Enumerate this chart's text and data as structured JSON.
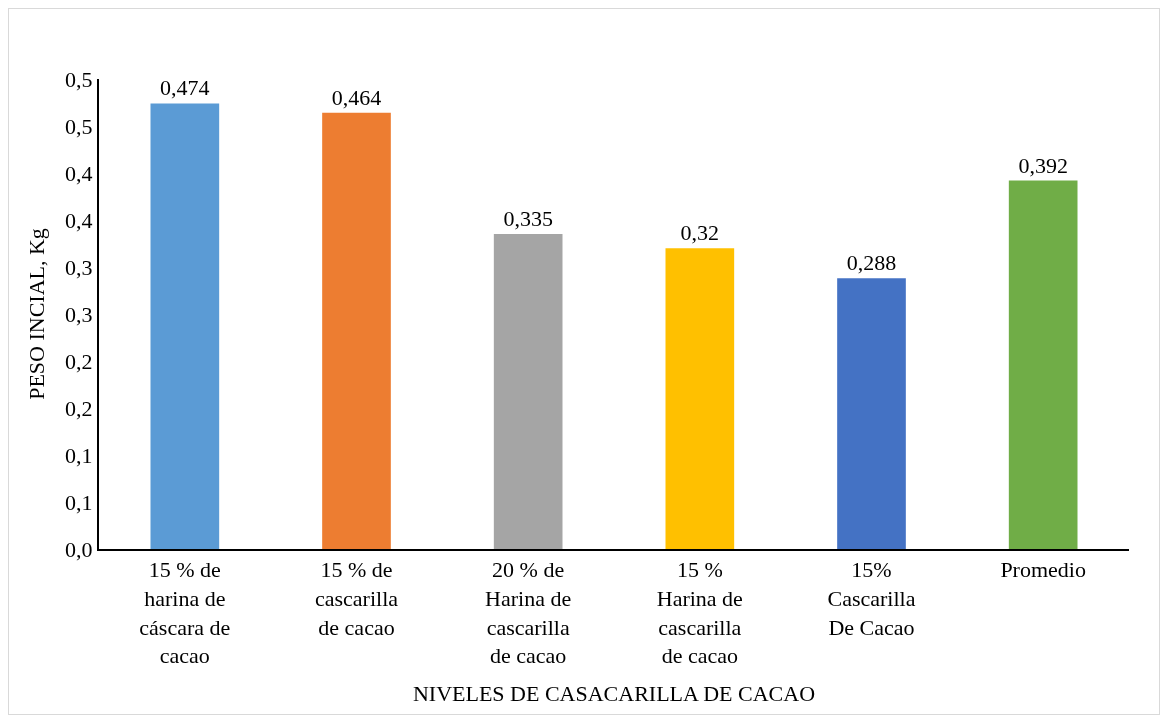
{
  "chart_data": {
    "type": "bar",
    "xlabel": "NIVELES DE CASACARILLA DE CACAO",
    "ylabel": "PESO INCIAL, Kg",
    "categories": [
      "15 % de harina de cáscara de cacao",
      "15 % de cascarilla de cacao",
      "20 % de Harina de cascarilla de cacao",
      "15 % Harina de cascarilla de cacao",
      "15% Cascarilla De Cacao",
      "Promedio"
    ],
    "values": [
      0.474,
      0.464,
      0.335,
      0.32,
      0.288,
      0.392
    ],
    "value_labels": [
      "0,474",
      "0,464",
      "0,335",
      "0,32",
      "0,288",
      "0,392"
    ],
    "colors": [
      "#5b9bd5",
      "#ed7d31",
      "#a5a5a5",
      "#ffc000",
      "#4472c4",
      "#70ad47"
    ],
    "ylim": [
      0,
      0.5
    ],
    "yticks": [
      {
        "value": 0,
        "label": "0,0"
      },
      {
        "value": 0.05,
        "label": "0,1"
      },
      {
        "value": 0.1,
        "label": "0,1"
      },
      {
        "value": 0.15,
        "label": "0,2"
      },
      {
        "value": 0.2,
        "label": "0,2"
      },
      {
        "value": 0.25,
        "label": "0,3"
      },
      {
        "value": 0.3,
        "label": "0,3"
      },
      {
        "value": 0.35,
        "label": "0,4"
      },
      {
        "value": 0.4,
        "label": "0,4"
      },
      {
        "value": 0.45,
        "label": "0,5"
      },
      {
        "value": 0.5,
        "label": "0,5"
      }
    ],
    "grid": false
  }
}
